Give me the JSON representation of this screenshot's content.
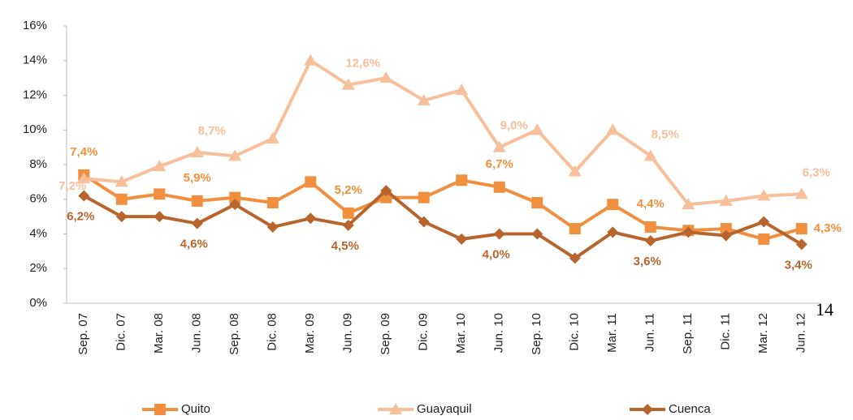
{
  "chart_data": {
    "type": "line",
    "categories": [
      "Sep. 07",
      "Dic. 07",
      "Mar. 08",
      "Jun. 08",
      "Sep. 08",
      "Dic. 08",
      "Mar. 09",
      "Jun. 09",
      "Sep. 09",
      "Dic. 09",
      "Mar. 10",
      "Jun. 10",
      "Sep. 10",
      "Dic. 10",
      "Mar. 11",
      "Jun. 11",
      "Sep. 11",
      "Dic. 11",
      "Mar. 12",
      "Jun. 12"
    ],
    "series": [
      {
        "name": "Quito",
        "color": "#f0903e",
        "marker": "square",
        "values": [
          7.4,
          6.0,
          6.3,
          5.9,
          6.1,
          5.8,
          7.0,
          5.2,
          6.1,
          6.1,
          7.1,
          6.7,
          5.8,
          4.3,
          5.7,
          4.4,
          4.2,
          4.3,
          3.7,
          4.3
        ],
        "value_labels": [
          "7,4%",
          null,
          null,
          "5,9%",
          null,
          null,
          null,
          "5,2%",
          null,
          null,
          null,
          "6,7%",
          null,
          null,
          null,
          "4,4%",
          null,
          null,
          null,
          "4,3%"
        ]
      },
      {
        "name": "Guayaquil",
        "color": "#f8bf9b",
        "marker": "triangle",
        "values": [
          7.2,
          7.0,
          7.9,
          8.7,
          8.5,
          9.5,
          14.0,
          12.6,
          13.0,
          11.7,
          12.3,
          9.0,
          10.0,
          7.6,
          10.0,
          8.5,
          5.7,
          5.9,
          6.2,
          6.3
        ],
        "value_labels": [
          "7,2%",
          null,
          null,
          "8,7%",
          null,
          null,
          null,
          "12,6%",
          null,
          null,
          null,
          "9,0%",
          null,
          null,
          null,
          "8,5%",
          null,
          null,
          null,
          "6,3%"
        ]
      },
      {
        "name": "Cuenca",
        "color": "#b8652d",
        "marker": "diamond",
        "values": [
          6.2,
          5.0,
          5.0,
          4.6,
          5.7,
          4.4,
          4.9,
          4.5,
          6.5,
          4.7,
          3.7,
          4.0,
          4.0,
          2.6,
          4.1,
          3.6,
          4.1,
          3.9,
          4.7,
          3.4
        ],
        "value_labels": [
          "6,2%",
          null,
          null,
          "4,6%",
          null,
          null,
          null,
          "4,5%",
          null,
          null,
          null,
          "4,0%",
          null,
          null,
          null,
          "3,6%",
          null,
          null,
          null,
          "3,4%"
        ]
      }
    ],
    "ylim": [
      0,
      16
    ],
    "yticks": [
      {
        "value": 0,
        "label": "0%"
      },
      {
        "value": 2,
        "label": "2%"
      },
      {
        "value": 4,
        "label": "4%"
      },
      {
        "value": 6,
        "label": "6%"
      },
      {
        "value": 8,
        "label": "8%"
      },
      {
        "value": 10,
        "label": "10%"
      },
      {
        "value": 12,
        "label": "12%"
      },
      {
        "value": 14,
        "label": "14%"
      },
      {
        "value": 16,
        "label": "16%"
      }
    ],
    "grid": false,
    "legend": "bottom",
    "annotations": [
      "14"
    ]
  }
}
